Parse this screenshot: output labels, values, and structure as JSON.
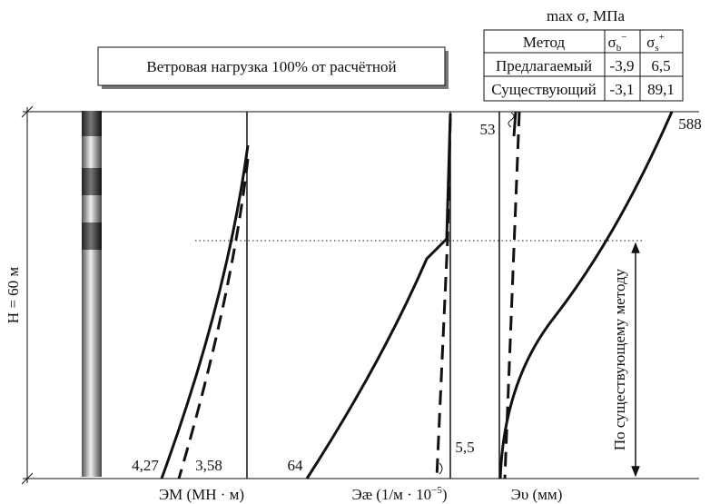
{
  "table": {
    "title": "max σ, МПа",
    "header": [
      "Метод",
      {
        "symbol": "σ",
        "sub": "b",
        "sup": "−"
      },
      {
        "symbol": "σ",
        "sub": "s",
        "sup": "+"
      }
    ],
    "rows": [
      [
        "Предлагаемый",
        "-3,9",
        "6,5"
      ],
      [
        "Существующий",
        "-3,1",
        "89,1"
      ]
    ]
  },
  "load_box": "Ветровая нагрузка 100% от расчётной",
  "height_label": "H = 60 м",
  "arrow_label": "По существующему методу",
  "curve_labels": [
    "4,27",
    "3,58",
    "64",
    "5,5",
    "53",
    "588"
  ],
  "x_labels": [
    {
      "text": "ЭМ (МН · м)"
    },
    {
      "text": "Эæ (1/м · 10",
      "sup": "−5",
      "tail": ")"
    },
    {
      "text": "Эυ (мм)"
    }
  ]
}
